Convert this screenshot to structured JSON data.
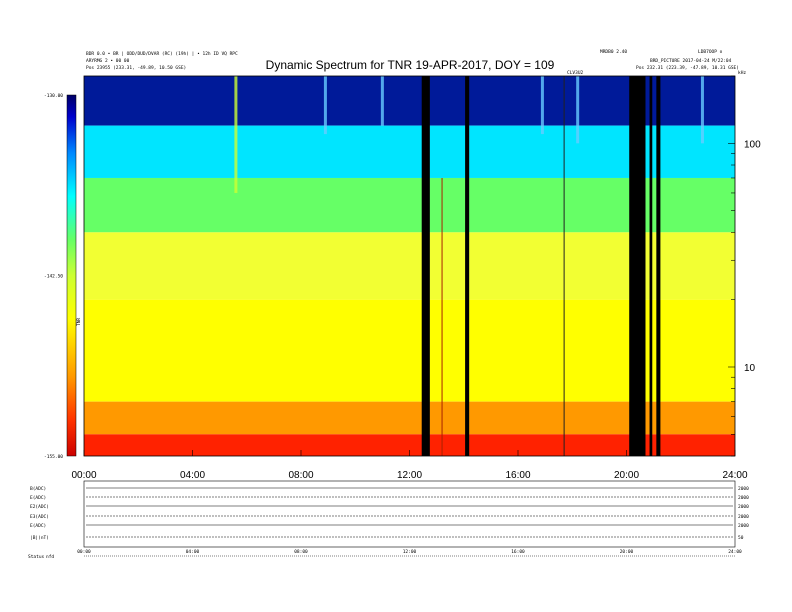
{
  "header": {
    "left_line1": "BDR 0.0 • BR | ODD/DUD/DVAR (RC) (19h) | • 12h ID VQ RPC",
    "left_line2": "ARYRMG 2 • 00 00",
    "left_line3": "Pos  23955 (233.31, -49.89, 10.50 GSE)",
    "right_line1": "MRDB0 2.40",
    "right_line2": "LDB7OOP o",
    "right_line3": "BRD_PICTURE 2017-04-24 M/22:04",
    "right_line4": "Pos  232.31 (223.39, -47.89, 10.31 GSE)",
    "mid_marker": "CLV3U2",
    "corner_label": "kHz"
  },
  "chart_data": {
    "type": "heatmap",
    "title": "Dynamic Spectrum for TNR 19-APR-2017, DOY = 109",
    "xlabel": "",
    "ylabel": "",
    "x_ticks": [
      "00:00",
      "04:00",
      "08:00",
      "12:00",
      "16:00",
      "20:00",
      "24:00"
    ],
    "x_range": [
      0,
      24
    ],
    "y_scale": "log",
    "y_range": [
      4,
      200
    ],
    "y_ticks": [
      10,
      100
    ],
    "y_tick_labels": [
      "10",
      "100"
    ],
    "colorbar": {
      "label": "TNR",
      "ticks": [
        "-130.00",
        "-142.50",
        "-155.00"
      ],
      "range": [
        -155.0,
        -130.0
      ],
      "colors": [
        "#cc0000",
        "#ff3300",
        "#ff9900",
        "#ffff00",
        "#ccff33",
        "#66ff66",
        "#00ffff",
        "#0088ff",
        "#0000cc",
        "#000066"
      ]
    },
    "bands": [
      {
        "f_top": 200,
        "f_bottom": 120,
        "color": "#001a99"
      },
      {
        "f_top": 120,
        "f_bottom": 70,
        "color": "#00e5ff"
      },
      {
        "f_top": 70,
        "f_bottom": 40,
        "color": "#66ff66"
      },
      {
        "f_top": 40,
        "f_bottom": 20,
        "color": "#f2ff33"
      },
      {
        "f_top": 20,
        "f_bottom": 7,
        "color": "#ffff00"
      },
      {
        "f_top": 7,
        "f_bottom": 5,
        "color": "#ff9900"
      },
      {
        "f_top": 5,
        "f_bottom": 4,
        "color": "#ff2200"
      }
    ],
    "data_gaps": [
      {
        "t0": 12.45,
        "t1": 12.75
      },
      {
        "t0": 14.05,
        "t1": 14.2
      },
      {
        "t0": 20.1,
        "t1": 20.7
      },
      {
        "t0": 20.85,
        "t1": 20.95
      },
      {
        "t0": 21.1,
        "t1": 21.25
      }
    ],
    "thin_lines": [
      {
        "t": 13.2,
        "f_top": 70,
        "f_bottom": 4,
        "color": "#aa2200"
      },
      {
        "t": 17.7,
        "f_top": 200,
        "f_bottom": 4,
        "color": "#222222"
      }
    ],
    "bursts": [
      {
        "t": 5.6,
        "f_top": 200,
        "f_bottom": 60,
        "color": "#ccff33"
      },
      {
        "t": 8.9,
        "f_top": 200,
        "f_bottom": 110,
        "color": "#66ccff"
      },
      {
        "t": 11.0,
        "f_top": 200,
        "f_bottom": 120,
        "color": "#66ccff"
      },
      {
        "t": 16.9,
        "f_top": 200,
        "f_bottom": 110,
        "color": "#66ccff"
      },
      {
        "t": 18.2,
        "f_top": 200,
        "f_bottom": 100,
        "color": "#66ccff"
      },
      {
        "t": 22.8,
        "f_top": 200,
        "f_bottom": 100,
        "color": "#66ccff"
      }
    ]
  },
  "bottom_panel": {
    "left_labels": [
      "B(ADC)",
      "E(ADC)",
      "E2(ADC)",
      "E3(ADC)",
      "E(ADC)",
      "|B|(nT)"
    ],
    "right_labels": [
      "2000",
      "2000",
      "2000",
      "2000",
      "2000",
      "50"
    ],
    "x_ticks": [
      "00:00",
      "04:00",
      "08:00",
      "12:00",
      "16:00",
      "20:00",
      "24:00"
    ],
    "status_label": "Status",
    "status_value": "nfd"
  }
}
